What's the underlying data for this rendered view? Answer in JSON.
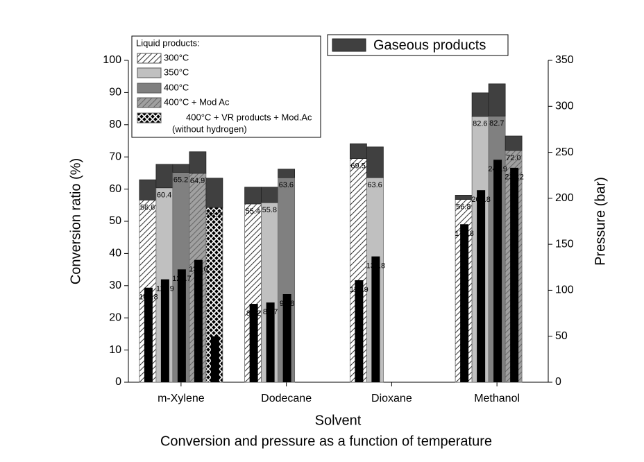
{
  "chart_data": {
    "type": "bar",
    "title": "Conversion and pressure as a function of temperature",
    "x_label": "Solvent",
    "y_label": "Conversion ratio (%)",
    "y2_label": "Pressure (bar)",
    "categories": [
      "m-Xylene",
      "Dodecane",
      "Dioxane",
      "Methanol"
    ],
    "ylim": [
      0,
      100
    ],
    "yticks": [
      0,
      10,
      20,
      30,
      40,
      50,
      60,
      70,
      80,
      90,
      100
    ],
    "y2lim": [
      0,
      350
    ],
    "y2ticks": [
      0,
      50,
      100,
      150,
      200,
      250,
      300,
      350
    ],
    "legend_title": "Liquid products:",
    "gas_legend": "Gaseous products",
    "gas_color": "#404040",
    "pressure_color": "#000000",
    "series": [
      {
        "name": "300°C",
        "color": "#ffffff",
        "pattern": "hatch",
        "values": [
          56.6,
          55.4,
          69.5,
          56.8
        ],
        "gas_values": [
          6.3,
          5.2,
          4.6,
          1.3
        ],
        "pressure_values": [
          102.8,
          85.2,
          110.9,
          171.8
        ]
      },
      {
        "name": "350°C",
        "color": "#c0c0c0",
        "pattern": null,
        "values": [
          60.4,
          55.8,
          63.6,
          82.6
        ],
        "gas_values": [
          7.3,
          4.8,
          9.5,
          7.3
        ],
        "pressure_values": [
          111.9,
          86.7,
          136.8,
          208.8
        ]
      },
      {
        "name": "400°C",
        "color": "#808080",
        "pattern": null,
        "values": [
          65.2,
          63.6,
          null,
          82.7
        ],
        "gas_values": [
          2.5,
          2.6,
          null,
          10.0
        ],
        "pressure_values": [
          122.7,
          95.8,
          null,
          241.9
        ]
      },
      {
        "name": "400°C + Mod Ac",
        "color": "#a0a0a0",
        "pattern": "hatch",
        "values": [
          64.9,
          null,
          null,
          72.0
        ],
        "value_labels": [
          "64.9",
          null,
          null,
          "72.0"
        ],
        "gas_values": [
          6.7,
          null,
          null,
          4.5
        ],
        "pressure_values": [
          133.0,
          null,
          null,
          233.2
        ],
        "pressure_labels": [
          "133.0",
          null,
          null,
          "233.2"
        ]
      },
      {
        "name": "400°C + VR products + Mod.Ac",
        "name_note": "(without hydrogen)",
        "color": "#000000",
        "pattern": "cross",
        "values": [
          54.3,
          null,
          null,
          null
        ],
        "gas_values": [
          9.1,
          null,
          null,
          null
        ],
        "pressure_values": [
          50.0,
          null,
          null,
          null
        ],
        "pressure_labels": [
          null,
          null,
          null,
          null
        ]
      }
    ]
  }
}
